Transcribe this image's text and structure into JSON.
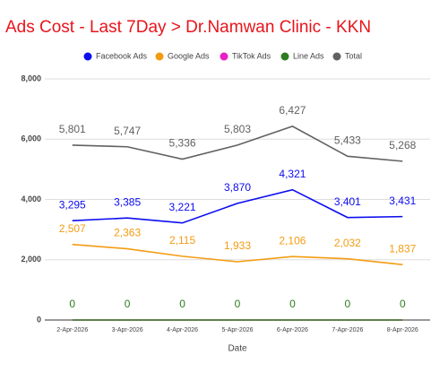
{
  "chart_data": {
    "type": "line",
    "title": "Ads Cost - Last 7Day > Dr.Namwan Clinic - KKN",
    "x_label": "Date",
    "categories": [
      "2-Apr-2026",
      "3-Apr-2026",
      "4-Apr-2026",
      "5-Apr-2026",
      "6-Apr-2026",
      "7-Apr-2026",
      "8-Apr-2026"
    ],
    "series": [
      {
        "name": "Facebook Ads",
        "color": "#0c0cf0",
        "values": [
          3295,
          3385,
          3221,
          3870,
          4321,
          3401,
          3431
        ],
        "value_labels": [
          "3,295",
          "3,385",
          "3,221",
          "3,870",
          "4,321",
          "3,401",
          "3,431"
        ]
      },
      {
        "name": "Google Ads",
        "color": "#f39c12",
        "values": [
          2507,
          2363,
          2115,
          1933,
          2106,
          2032,
          1837
        ],
        "value_labels": [
          "2,507",
          "2,363",
          "2,115",
          "1,933",
          "2,106",
          "2,032",
          "1,837"
        ]
      },
      {
        "name": "TikTok Ads",
        "color": "#e91ec4",
        "values": [
          0,
          0,
          0,
          0,
          0,
          0,
          0
        ]
      },
      {
        "name": "Line Ads",
        "color": "#2e7d1f",
        "values": [
          0,
          0,
          0,
          0,
          0,
          0,
          0
        ],
        "value_labels": [
          "0",
          "0",
          "0",
          "0",
          "0",
          "0",
          "0"
        ]
      },
      {
        "name": "Total",
        "color": "#616161",
        "values": [
          5801,
          5747,
          5336,
          5803,
          6427,
          5433,
          5268
        ],
        "value_labels": [
          "5,801",
          "5,747",
          "5,336",
          "5,803",
          "6,427",
          "5,433",
          "5,268"
        ]
      }
    ],
    "ylim": [
      0,
      8000
    ],
    "yticks": [
      0,
      {
        "value": 2000,
        "label": "2,000"
      },
      {
        "value": 4000,
        "label": "4,000"
      },
      {
        "value": 6000,
        "label": "6,000"
      },
      {
        "value": 8000,
        "label": "8,000"
      }
    ],
    "grid": true,
    "legend": "top"
  }
}
